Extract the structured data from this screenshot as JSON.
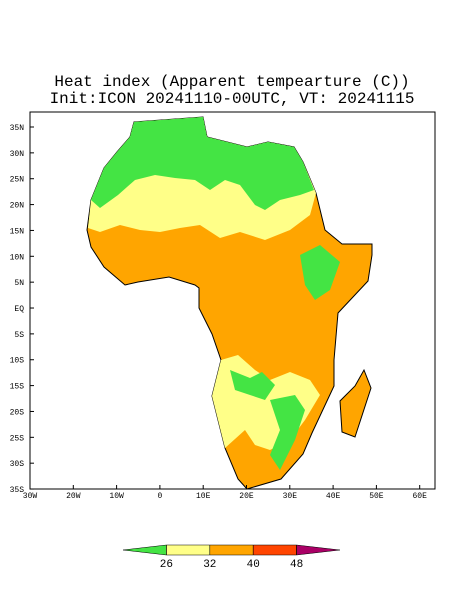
{
  "title": "Heat index (Apparent tempearture (C))",
  "subtitle": "Init:ICON 20241110-00UTC, VT: 20241115",
  "lat_labels": [
    "35N",
    "30N",
    "25N",
    "20N",
    "15N",
    "10N",
    "5N",
    "EQ",
    "5S",
    "10S",
    "15S",
    "20S",
    "25S",
    "30S",
    "35S"
  ],
  "lon_labels": [
    "30W",
    "20W",
    "10W",
    "0",
    "10E",
    "20E",
    "30E",
    "40E",
    "50E",
    "60E"
  ],
  "colorbar": {
    "ticks": [
      26,
      32,
      40,
      48
    ],
    "colors": [
      "#44e444",
      "#ffff88",
      "#ffa500",
      "#ff4500",
      "#aa0066"
    ]
  }
}
